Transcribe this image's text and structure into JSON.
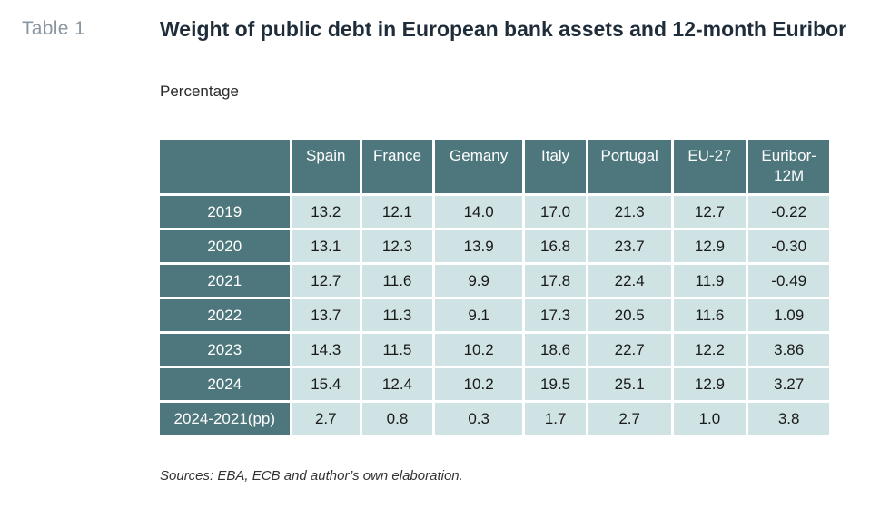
{
  "table_label": "Table 1",
  "title": "Weight of public debt in European bank assets and 12-month Euribor",
  "subtitle": "Percentage",
  "table": {
    "columns": [
      "Spain",
      "France",
      "Gemany",
      "Italy",
      "Portugal",
      "EU-27",
      "Euribor-12M"
    ],
    "rows": [
      {
        "label": "2019",
        "values": [
          "13.2",
          "12.1",
          "14.0",
          "17.0",
          "21.3",
          "12.7",
          "-0.22"
        ]
      },
      {
        "label": "2020",
        "values": [
          "13.1",
          "12.3",
          "13.9",
          "16.8",
          "23.7",
          "12.9",
          "-0.30"
        ]
      },
      {
        "label": "2021",
        "values": [
          "12.7",
          "11.6",
          "9.9",
          "17.8",
          "22.4",
          "11.9",
          "-0.49"
        ]
      },
      {
        "label": "2022",
        "values": [
          "13.7",
          "11.3",
          "9.1",
          "17.3",
          "20.5",
          "11.6",
          "1.09"
        ]
      },
      {
        "label": "2023",
        "values": [
          "14.3",
          "11.5",
          "10.2",
          "18.6",
          "22.7",
          "12.2",
          "3.86"
        ]
      },
      {
        "label": "2024",
        "values": [
          "15.4",
          "12.4",
          "10.2",
          "19.5",
          "25.1",
          "12.9",
          "3.27"
        ]
      },
      {
        "label": "2024-2021(pp)",
        "values": [
          "2.7",
          "0.8",
          "0.3",
          "1.7",
          "2.7",
          "1.0",
          "3.8"
        ]
      }
    ]
  },
  "source": "Sources: EBA, ECB and author’s own elaboration.",
  "colors": {
    "header_fill": "#4d777c",
    "cell_fill": "#cfe2e4",
    "label_gray": "#8a97a3"
  }
}
